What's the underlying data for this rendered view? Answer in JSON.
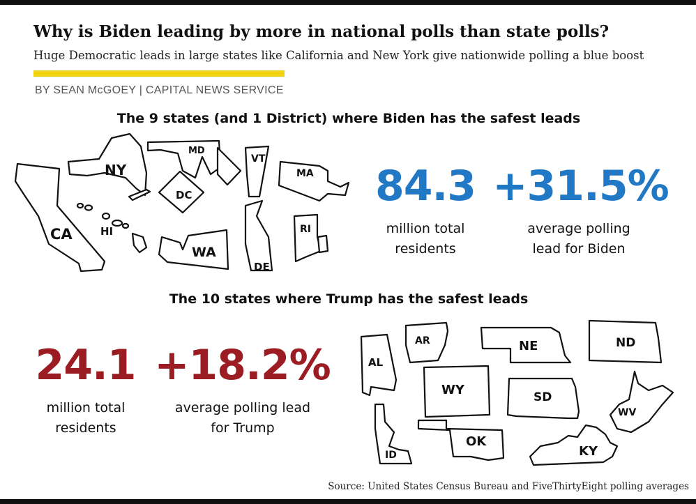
{
  "header": {
    "title": "Why is Biden leading by more in national polls than state polls?",
    "subtitle": "Huge Democratic leads in large states like California and New York give nationwide polling a blue boost",
    "byline": "BY SEAN McGOEY | CAPITAL NEWS SERVICE"
  },
  "biden": {
    "heading": "The 9 states (and 1 District) where Biden has the safest leads",
    "residents_value": "84.3",
    "residents_caption": "million total residents",
    "lead_value": "+31.5%",
    "lead_caption": "average polling lead for Biden",
    "states": [
      "NY",
      "MD",
      "VT",
      "MA",
      "CA",
      "HI",
      "DC",
      "WA",
      "RI",
      "DE"
    ],
    "accent_color": "#2178c5"
  },
  "trump": {
    "heading": "The 10 states where Trump has the safest leads",
    "residents_value": "24.1",
    "residents_caption": "million total residents",
    "lead_value": "+18.2%",
    "lead_caption": "average polling lead for Trump",
    "states": [
      "AR",
      "AL",
      "NE",
      "ND",
      "WY",
      "SD",
      "WV",
      "OK",
      "ID",
      "KY"
    ],
    "accent_color": "#9b1c22"
  },
  "footer": {
    "source": "Source: United States Census Bureau and FiveThirtyEight polling averages"
  }
}
